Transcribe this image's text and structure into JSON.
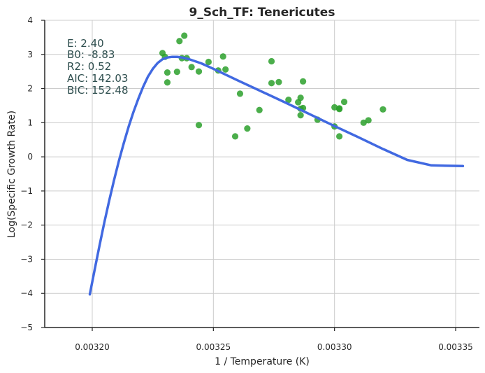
{
  "chart_data": {
    "type": "scatter",
    "title": "9_Sch_TF: Tenericutes",
    "xlabel": "1 / Temperature (K)",
    "ylabel": "Log(Specific Growth Rate)",
    "xlim": [
      0.00318,
      0.003355
    ],
    "ylim": [
      -5,
      4
    ],
    "x_ticks": [
      0.0032,
      0.00325,
      0.0033,
      0.00335
    ],
    "x_tick_labels": [
      "0.00320",
      "0.00325",
      "0.00330",
      "0.00335"
    ],
    "y_ticks": [
      -5,
      -4,
      -3,
      -2,
      -1,
      0,
      1,
      2,
      3,
      4
    ],
    "y_tick_labels": [
      "−5",
      "−4",
      "−3",
      "−2",
      "−1",
      "0",
      "1",
      "2",
      "3",
      "4"
    ],
    "grid": true,
    "annotations": [
      "E:  2.40",
      "B0:  -8.83",
      "R2:  0.52",
      "AIC: 142.03",
      "BIC: 152.48"
    ],
    "colors": {
      "points": "#2ca02c",
      "fit_line": "#4169e1",
      "annotation": "#2f4f4f"
    },
    "points": [
      {
        "x": 0.003229,
        "y": 3.04
      },
      {
        "x": 0.00323,
        "y": 2.93
      },
      {
        "x": 0.003231,
        "y": 2.47
      },
      {
        "x": 0.003231,
        "y": 2.18
      },
      {
        "x": 0.003235,
        "y": 2.49
      },
      {
        "x": 0.003236,
        "y": 3.39
      },
      {
        "x": 0.003237,
        "y": 2.89
      },
      {
        "x": 0.003238,
        "y": 3.55
      },
      {
        "x": 0.003239,
        "y": 2.89
      },
      {
        "x": 0.003241,
        "y": 2.63
      },
      {
        "x": 0.003244,
        "y": 2.5
      },
      {
        "x": 0.003244,
        "y": 0.93
      },
      {
        "x": 0.003248,
        "y": 2.78
      },
      {
        "x": 0.003252,
        "y": 2.53
      },
      {
        "x": 0.003254,
        "y": 2.94
      },
      {
        "x": 0.003255,
        "y": 2.56
      },
      {
        "x": 0.003259,
        "y": 0.6
      },
      {
        "x": 0.003261,
        "y": 1.85
      },
      {
        "x": 0.003264,
        "y": 0.83
      },
      {
        "x": 0.003269,
        "y": 1.37
      },
      {
        "x": 0.003274,
        "y": 2.8
      },
      {
        "x": 0.003274,
        "y": 2.16
      },
      {
        "x": 0.003277,
        "y": 2.19
      },
      {
        "x": 0.003281,
        "y": 1.67
      },
      {
        "x": 0.003285,
        "y": 1.6
      },
      {
        "x": 0.003286,
        "y": 1.73
      },
      {
        "x": 0.003286,
        "y": 1.41
      },
      {
        "x": 0.003286,
        "y": 1.22
      },
      {
        "x": 0.003287,
        "y": 2.21
      },
      {
        "x": 0.003287,
        "y": 1.43
      },
      {
        "x": 0.003293,
        "y": 1.09
      },
      {
        "x": 0.0033,
        "y": 1.45
      },
      {
        "x": 0.0033,
        "y": 0.89
      },
      {
        "x": 0.003302,
        "y": 1.4
      },
      {
        "x": 0.003302,
        "y": 1.42
      },
      {
        "x": 0.003302,
        "y": 0.6
      },
      {
        "x": 0.003304,
        "y": 1.61
      },
      {
        "x": 0.003312,
        "y": 1.0
      },
      {
        "x": 0.003314,
        "y": 1.07
      },
      {
        "x": 0.00332,
        "y": 1.39
      }
    ],
    "fit_line": [
      {
        "x": 0.003199,
        "y": -4.03
      },
      {
        "x": 0.003201,
        "y": -3.3
      },
      {
        "x": 0.003203,
        "y": -2.6
      },
      {
        "x": 0.003205,
        "y": -1.92
      },
      {
        "x": 0.003207,
        "y": -1.28
      },
      {
        "x": 0.003209,
        "y": -0.68
      },
      {
        "x": 0.003211,
        "y": -0.12
      },
      {
        "x": 0.003213,
        "y": 0.4
      },
      {
        "x": 0.003215,
        "y": 0.88
      },
      {
        "x": 0.003217,
        "y": 1.31
      },
      {
        "x": 0.003219,
        "y": 1.7
      },
      {
        "x": 0.003221,
        "y": 2.05
      },
      {
        "x": 0.003223,
        "y": 2.35
      },
      {
        "x": 0.003225,
        "y": 2.58
      },
      {
        "x": 0.003227,
        "y": 2.75
      },
      {
        "x": 0.003229,
        "y": 2.86
      },
      {
        "x": 0.003231,
        "y": 2.91
      },
      {
        "x": 0.003233,
        "y": 2.93
      },
      {
        "x": 0.003235,
        "y": 2.93
      },
      {
        "x": 0.003237,
        "y": 2.91
      },
      {
        "x": 0.00324,
        "y": 2.86
      },
      {
        "x": 0.003245,
        "y": 2.74
      },
      {
        "x": 0.00325,
        "y": 2.58
      },
      {
        "x": 0.00326,
        "y": 2.24
      },
      {
        "x": 0.00327,
        "y": 1.91
      },
      {
        "x": 0.00328,
        "y": 1.58
      },
      {
        "x": 0.00329,
        "y": 1.24
      },
      {
        "x": 0.0033,
        "y": 0.9
      },
      {
        "x": 0.00331,
        "y": 0.57
      },
      {
        "x": 0.00332,
        "y": 0.23
      },
      {
        "x": 0.00333,
        "y": -0.09
      },
      {
        "x": 0.00334,
        "y": -0.25
      },
      {
        "x": 0.003353,
        "y": -0.27
      }
    ]
  }
}
